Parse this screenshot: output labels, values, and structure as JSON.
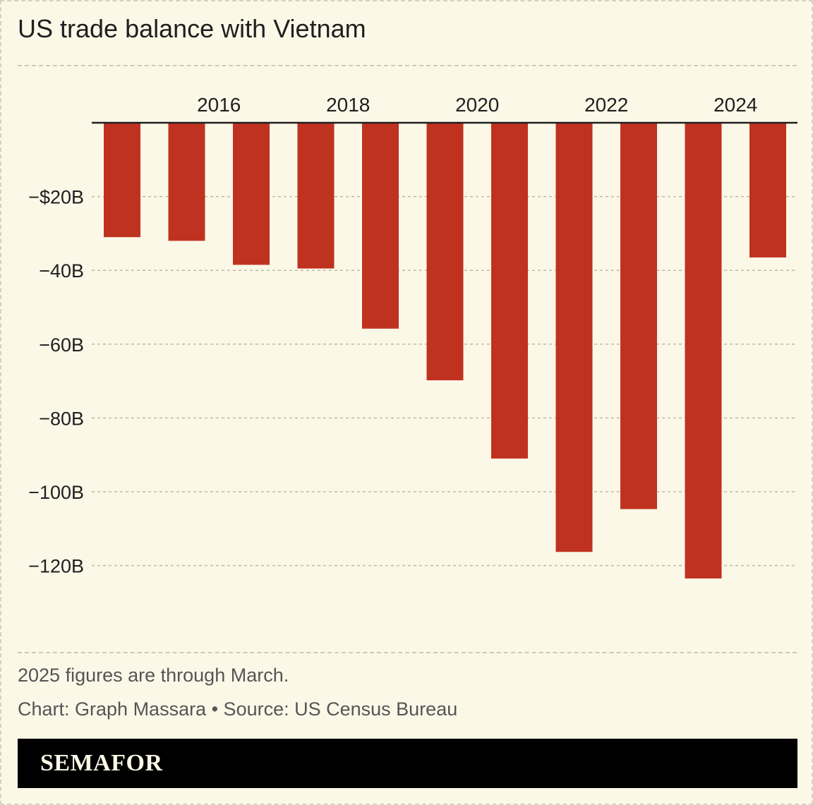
{
  "title": "US trade balance with Vietnam",
  "footnote": "2025 figures are through March.",
  "credit": "Chart: Graph Massara • Source: US Census Bureau",
  "brand": "SEMAFOR",
  "colors": {
    "bar": "#c03220",
    "background": "#fbf8e8",
    "axis": "#1f1f1f",
    "grid": "#bdbaa9",
    "brand_bar": "#000000"
  },
  "chart_data": {
    "type": "bar",
    "categories": [
      "2015",
      "2016",
      "2017",
      "2018",
      "2019",
      "2020",
      "2021",
      "2022",
      "2023",
      "2024",
      "2025"
    ],
    "x_tick_labels": [
      {
        "category": "2016",
        "label": "2016"
      },
      {
        "category": "2018",
        "label": "2018"
      },
      {
        "category": "2020",
        "label": "2020"
      },
      {
        "category": "2022",
        "label": "2022"
      },
      {
        "category": "2024",
        "label": "2024"
      }
    ],
    "values": [
      -31,
      -32,
      -38.5,
      -39.5,
      -55.8,
      -69.8,
      -91,
      -116.3,
      -104.7,
      -123.5,
      -36.5
    ],
    "y_ticks": [
      {
        "value": -20,
        "label": "−$20B"
      },
      {
        "value": -40,
        "label": "−40B"
      },
      {
        "value": -60,
        "label": "−60B"
      },
      {
        "value": -80,
        "label": "−80B"
      },
      {
        "value": -100,
        "label": "−100B"
      },
      {
        "value": -120,
        "label": "−120B"
      }
    ],
    "ylim": [
      -135,
      0
    ],
    "grid": true,
    "xaxis_position": "top",
    "title": "US trade balance with Vietnam",
    "xlabel": "",
    "ylabel": ""
  }
}
